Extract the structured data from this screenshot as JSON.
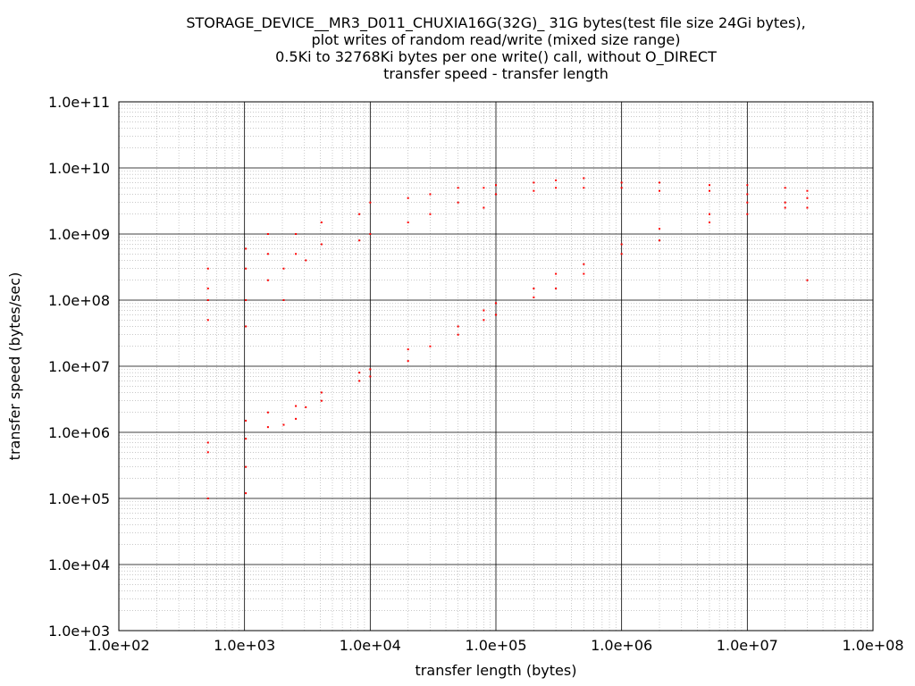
{
  "chart_data": {
    "type": "scatter",
    "title_lines": [
      "STORAGE_DEVICE__MR3_D011_CHUXIA16G(32G)_ 31G bytes(test file size 24Gi bytes),",
      "plot writes of random read/write (mixed size range)",
      "0.5Ki to 32768Ki bytes per one write() call, without O_DIRECT",
      "transfer speed - transfer length"
    ],
    "xlabel": "transfer length (bytes)",
    "ylabel": "transfer speed (bytes/sec)",
    "x_scale": "log",
    "y_scale": "log",
    "xlim": [
      100,
      100000000
    ],
    "ylim": [
      1000,
      100000000000
    ],
    "x_ticks": [
      "1.0e+02",
      "1.0e+03",
      "1.0e+04",
      "1.0e+05",
      "1.0e+06",
      "1.0e+07",
      "1.0e+08"
    ],
    "y_ticks": [
      "1.0e+03",
      "1.0e+04",
      "1.0e+05",
      "1.0e+06",
      "1.0e+07",
      "1.0e+08",
      "1.0e+09",
      "1.0e+10",
      "1.0e+11"
    ],
    "grid": true,
    "point_color": "#ff0000",
    "series": [
      {
        "values": [
          [
            512,
            50000000
          ],
          [
            512,
            100000000
          ],
          [
            512,
            150000000
          ],
          [
            512,
            300000000
          ],
          [
            512,
            500000
          ],
          [
            512,
            700000
          ],
          [
            512,
            100000
          ],
          [
            1024,
            40000000
          ],
          [
            1024,
            100000000
          ],
          [
            1024,
            300000000
          ],
          [
            1024,
            600000000
          ],
          [
            1024,
            800000
          ],
          [
            1024,
            1500000
          ],
          [
            1024,
            300000
          ],
          [
            1024,
            120000
          ],
          [
            1536,
            200000000
          ],
          [
            1536,
            500000000
          ],
          [
            1536,
            1000000000
          ],
          [
            1536,
            1200000
          ],
          [
            1536,
            2000000
          ],
          [
            2048,
            100000000
          ],
          [
            2048,
            300000000
          ],
          [
            2048,
            1300000
          ],
          [
            2560,
            500000000
          ],
          [
            2560,
            1000000000
          ],
          [
            2560,
            1600000
          ],
          [
            2560,
            2500000
          ],
          [
            3072,
            400000000
          ],
          [
            3072,
            2400000
          ],
          [
            4096,
            700000000
          ],
          [
            4096,
            1500000000
          ],
          [
            4096,
            3000000
          ],
          [
            4096,
            4000000
          ],
          [
            8192,
            800000000
          ],
          [
            8192,
            2000000000
          ],
          [
            8192,
            6000000
          ],
          [
            8192,
            8000000
          ],
          [
            10000,
            1000000000
          ],
          [
            10000,
            3000000000
          ],
          [
            10000,
            7000000
          ],
          [
            10000,
            9000000
          ],
          [
            20000,
            1500000000
          ],
          [
            20000,
            3500000000
          ],
          [
            20000,
            12000000
          ],
          [
            20000,
            18000000
          ],
          [
            30000,
            2000000000
          ],
          [
            30000,
            4000000000
          ],
          [
            30000,
            20000000
          ],
          [
            50000,
            3000000000
          ],
          [
            50000,
            5000000000
          ],
          [
            50000,
            30000000
          ],
          [
            50000,
            40000000
          ],
          [
            80000,
            2500000000
          ],
          [
            80000,
            5000000000
          ],
          [
            80000,
            50000000
          ],
          [
            80000,
            70000000
          ],
          [
            100000,
            4000000000
          ],
          [
            100000,
            5500000000
          ],
          [
            100000,
            60000000
          ],
          [
            100000,
            90000000
          ],
          [
            200000,
            4500000000
          ],
          [
            200000,
            6000000000
          ],
          [
            200000,
            110000000
          ],
          [
            200000,
            150000000
          ],
          [
            300000,
            5000000000
          ],
          [
            300000,
            6500000000
          ],
          [
            300000,
            150000000
          ],
          [
            300000,
            250000000
          ],
          [
            500000,
            5000000000
          ],
          [
            500000,
            7000000000
          ],
          [
            500000,
            250000000
          ],
          [
            500000,
            350000000
          ],
          [
            1000000,
            5000000000
          ],
          [
            1000000,
            6000000000
          ],
          [
            1000000,
            500000000
          ],
          [
            1000000,
            700000000
          ],
          [
            2000000,
            4500000000
          ],
          [
            2000000,
            6000000000
          ],
          [
            2000000,
            800000000
          ],
          [
            2000000,
            1200000000
          ],
          [
            5000000,
            4500000000
          ],
          [
            5000000,
            5500000000
          ],
          [
            5000000,
            1500000000
          ],
          [
            5000000,
            2000000000
          ],
          [
            10000000,
            4000000000
          ],
          [
            10000000,
            5500000000
          ],
          [
            10000000,
            2000000000
          ],
          [
            10000000,
            3000000000
          ],
          [
            20000000,
            3000000000
          ],
          [
            20000000,
            5000000000
          ],
          [
            20000000,
            2500000000
          ],
          [
            30000000,
            2500000000
          ],
          [
            30000000,
            4500000000
          ],
          [
            30000000,
            3500000000
          ],
          [
            30000000,
            200000000
          ]
        ]
      }
    ]
  }
}
